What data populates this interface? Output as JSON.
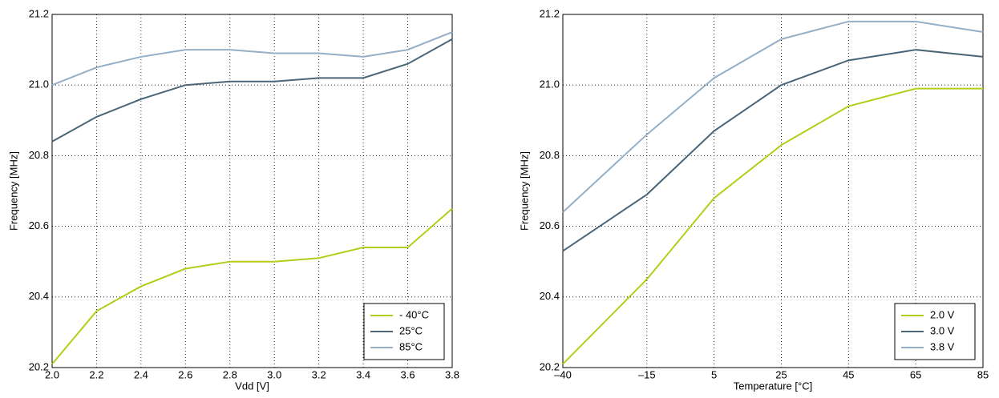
{
  "chart_data": [
    {
      "type": "line",
      "xlabel": "Vdd [V]",
      "ylabel": "Frequency [MHz]",
      "x": [
        2.0,
        2.2,
        2.4,
        2.6,
        2.8,
        3.0,
        3.2,
        3.4,
        3.6,
        3.8
      ],
      "series": [
        {
          "name": "- 40°C",
          "color": "#b5cc18",
          "values": [
            20.21,
            20.36,
            20.43,
            20.48,
            20.5,
            20.5,
            20.51,
            20.54,
            20.54,
            20.65
          ]
        },
        {
          "name": "25°C",
          "color": "#4a6577",
          "values": [
            20.84,
            20.91,
            20.96,
            21.0,
            21.01,
            21.01,
            21.02,
            21.02,
            21.06,
            21.13
          ]
        },
        {
          "name": "85°C",
          "color": "#94afc7",
          "values": [
            21.0,
            21.05,
            21.08,
            21.1,
            21.1,
            21.09,
            21.09,
            21.08,
            21.1,
            21.15
          ]
        }
      ],
      "xlim": [
        2,
        3.8
      ],
      "xticks": [
        {
          "value": 2,
          "label": "2.0"
        },
        2.2,
        2.4,
        2.6,
        2.8,
        {
          "value": 3,
          "label": "3.0"
        },
        3.2,
        3.4,
        3.6,
        3.8
      ],
      "ylim": [
        20.2,
        21.2
      ],
      "yticks": [
        20.2,
        20.4,
        20.6,
        20.8,
        {
          "value": 21,
          "label": "21.0"
        },
        21.2
      ],
      "grid": true,
      "legend": "lower right"
    },
    {
      "type": "line",
      "xlabel": "Temperature [°C]",
      "ylabel": "Frequency [MHz]",
      "x": [
        -40,
        -15,
        5,
        25,
        45,
        65,
        85
      ],
      "series": [
        {
          "name": "2.0 V",
          "color": "#b5cc18",
          "values": [
            20.21,
            20.45,
            20.68,
            20.83,
            20.94,
            20.99,
            20.99
          ]
        },
        {
          "name": "3.0 V",
          "color": "#4a6577",
          "values": [
            20.53,
            20.69,
            20.87,
            21.0,
            21.07,
            21.1,
            21.08
          ]
        },
        {
          "name": "3.8 V",
          "color": "#94afc7",
          "values": [
            20.64,
            20.86,
            21.02,
            21.13,
            21.18,
            21.18,
            21.15
          ]
        }
      ],
      "xlim": [
        -40,
        85
      ],
      "xticks": [
        {
          "value": -40,
          "label": "–40"
        },
        {
          "value": -15,
          "label": "–15"
        },
        5,
        25,
        45,
        65,
        85
      ],
      "ylim": [
        20.2,
        21.2
      ],
      "yticks": [
        20.2,
        20.4,
        20.6,
        20.8,
        {
          "value": 21,
          "label": "21.0"
        },
        21.2
      ],
      "grid": true,
      "legend": "lower right"
    }
  ]
}
